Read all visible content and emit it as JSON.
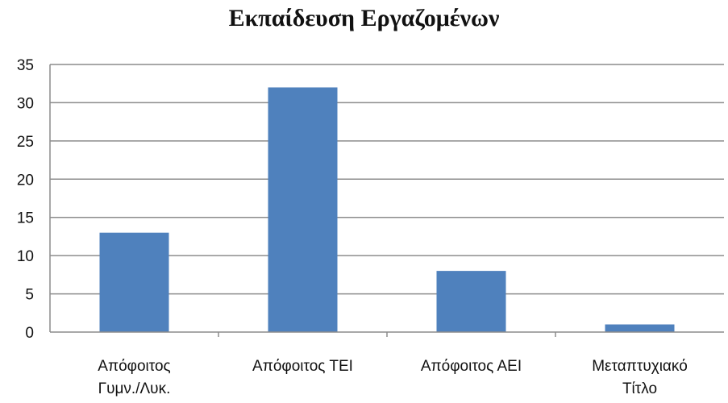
{
  "chart_data": {
    "type": "bar",
    "title": "Εκπαίδευση Εργαζομένων",
    "categories": [
      [
        "Απόφοιτος",
        "Γυμν./Λυκ."
      ],
      [
        "Απόφοιτος ΤΕΙ"
      ],
      [
        "Απόφοιτος ΑΕΙ"
      ],
      [
        "Μεταπτυχιακό",
        "Τίτλο"
      ]
    ],
    "values": [
      13,
      32,
      8,
      1
    ],
    "ylim": [
      0,
      35
    ],
    "yticks": [
      "0",
      "5",
      "10",
      "15",
      "20",
      "25",
      "30",
      "35"
    ],
    "grid": true,
    "legend": "none",
    "bar_color": "#4f81bd",
    "gridline_color": "#8c8c8c"
  }
}
